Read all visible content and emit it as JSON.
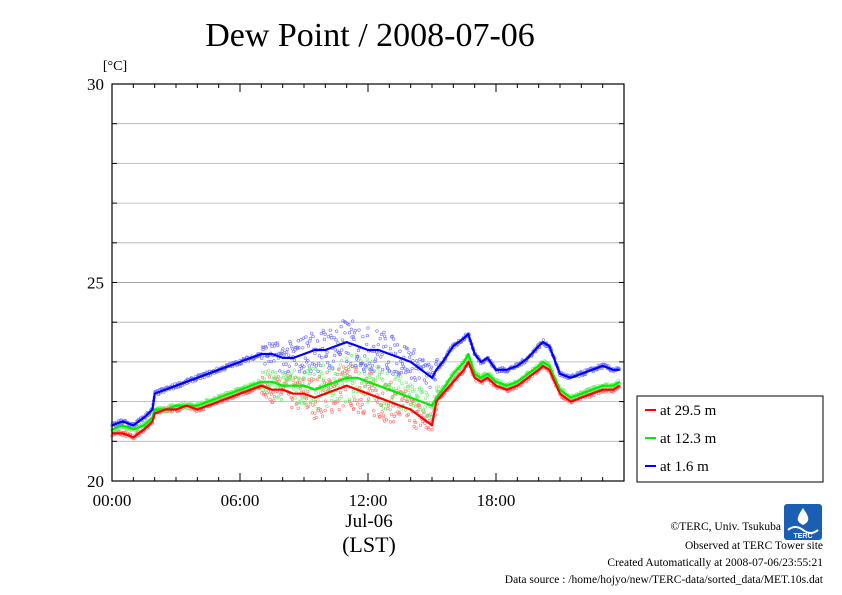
{
  "chart_data": {
    "type": "line",
    "title": "Dew Point / 2008-07-06",
    "ylabel": "[°C]",
    "xlabel_date": "Jul-06",
    "xlabel_zone": "(LST)",
    "ylim": [
      20,
      30
    ],
    "xlim_hours": [
      0,
      24
    ],
    "yticks": [
      20,
      25,
      30
    ],
    "ytick_labels": [
      "20",
      "25",
      "30"
    ],
    "xticks_hours": [
      0,
      6,
      12,
      18
    ],
    "xtick_labels": [
      "00:00",
      "06:00",
      "12:00",
      "18:00"
    ],
    "minor_gridlines_y": [
      21,
      22,
      23,
      24,
      26,
      27,
      28,
      29
    ],
    "grid": true,
    "legend_position": "right-bottom, outside plot",
    "x_hours": [
      0,
      0.5,
      1,
      1.5,
      1.9,
      2,
      2.5,
      3,
      3.5,
      4,
      4.5,
      5,
      5.5,
      6,
      6.5,
      7,
      7.5,
      8,
      8.5,
      9,
      9.5,
      10,
      10.5,
      11,
      11.5,
      12,
      12.5,
      13,
      13.5,
      14,
      14.5,
      15,
      15.2,
      15.5,
      16,
      16.5,
      16.7,
      17,
      17.3,
      17.6,
      18,
      18.5,
      19,
      19.5,
      20,
      20.2,
      20.5,
      21,
      21.5,
      22,
      22.5,
      23,
      23.5,
      23.8
    ],
    "series": [
      {
        "name": "at 29.5 m",
        "color": "#ff0000",
        "values": [
          21.2,
          21.2,
          21.1,
          21.3,
          21.5,
          21.7,
          21.8,
          21.8,
          21.9,
          21.8,
          21.9,
          22.0,
          22.1,
          22.2,
          22.3,
          22.4,
          22.3,
          22.3,
          22.2,
          22.2,
          22.1,
          22.2,
          22.3,
          22.4,
          22.3,
          22.2,
          22.1,
          22.0,
          21.9,
          21.8,
          21.6,
          21.4,
          22.0,
          22.2,
          22.5,
          22.8,
          23.0,
          22.6,
          22.5,
          22.6,
          22.4,
          22.3,
          22.4,
          22.6,
          22.8,
          22.9,
          22.8,
          22.2,
          22.0,
          22.1,
          22.2,
          22.3,
          22.3,
          22.4
        ]
      },
      {
        "name": "at 12.3 m",
        "color": "#00ee00",
        "values": [
          21.3,
          21.4,
          21.3,
          21.4,
          21.6,
          21.8,
          21.8,
          21.9,
          21.9,
          21.9,
          22.0,
          22.1,
          22.2,
          22.3,
          22.4,
          22.5,
          22.5,
          22.4,
          22.4,
          22.4,
          22.3,
          22.4,
          22.5,
          22.6,
          22.6,
          22.5,
          22.4,
          22.3,
          22.2,
          22.1,
          22.0,
          21.9,
          22.1,
          22.3,
          22.7,
          23.0,
          23.2,
          22.7,
          22.6,
          22.7,
          22.5,
          22.4,
          22.5,
          22.7,
          22.9,
          23.0,
          22.9,
          22.3,
          22.1,
          22.2,
          22.3,
          22.4,
          22.4,
          22.5
        ]
      },
      {
        "name": "at 1.6 m",
        "color": "#0000ff",
        "values": [
          21.4,
          21.5,
          21.4,
          21.6,
          21.8,
          22.2,
          22.3,
          22.4,
          22.5,
          22.6,
          22.7,
          22.8,
          22.9,
          23.0,
          23.1,
          23.2,
          23.2,
          23.1,
          23.1,
          23.2,
          23.3,
          23.3,
          23.4,
          23.5,
          23.4,
          23.3,
          23.3,
          23.2,
          23.1,
          23.0,
          22.8,
          22.6,
          22.8,
          23.0,
          23.4,
          23.6,
          23.7,
          23.2,
          23.0,
          23.1,
          22.8,
          22.8,
          22.9,
          23.1,
          23.4,
          23.5,
          23.4,
          22.7,
          22.6,
          22.7,
          22.8,
          22.9,
          22.8,
          22.8
        ]
      }
    ]
  },
  "credits": {
    "copyright": "©TERC, Univ. Tsukuba",
    "observed": "Observed at TERC Tower site",
    "created": "Created Automatically at 2008-07-06/23:55:21",
    "source": "Data source : /home/hojyo/new/TERC-data/sorted_data/MET.10s.dat",
    "logo_text": "TERC"
  }
}
